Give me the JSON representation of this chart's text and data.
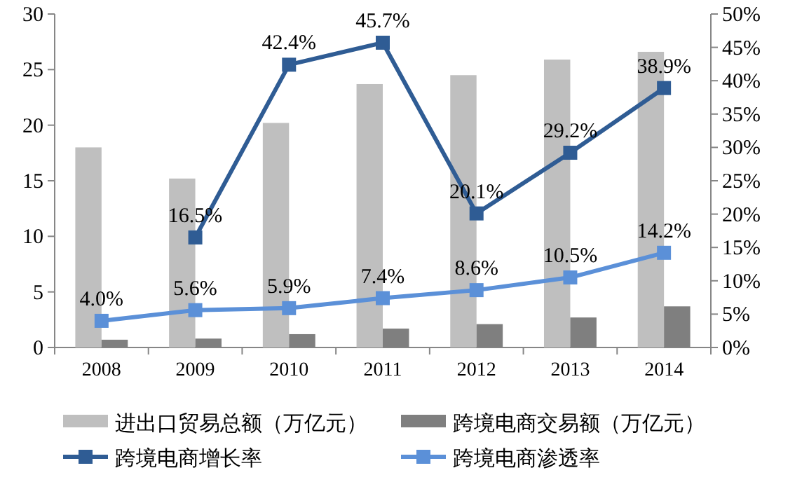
{
  "chart_data": {
    "type": "bar",
    "categories": [
      "2008",
      "2009",
      "2010",
      "2011",
      "2012",
      "2013",
      "2014"
    ],
    "series": [
      {
        "name": "进出口贸易总额（万亿元）",
        "color": "#bfbfbf",
        "values": [
          18.0,
          15.2,
          20.2,
          23.7,
          24.5,
          25.9,
          26.6
        ]
      },
      {
        "name": "跨境电商交易额（万亿元）",
        "color": "#7f7f7f",
        "values": [
          0.7,
          0.8,
          1.2,
          1.7,
          2.1,
          2.7,
          3.7
        ]
      },
      {
        "name": "跨境电商增长率",
        "type": "line",
        "axis": "y2",
        "color": "#2f5c94",
        "marker": "square",
        "values": [
          null,
          16.5,
          42.4,
          45.7,
          20.1,
          29.2,
          38.9
        ],
        "value_labels": [
          null,
          "16.5%",
          "42.4%",
          "45.7%",
          "20.1%",
          "29.2%",
          "38.9%"
        ]
      },
      {
        "name": "跨境电商渗透率",
        "type": "line",
        "axis": "y2",
        "color": "#5b90d8",
        "marker": "square",
        "values": [
          4.0,
          5.6,
          5.9,
          7.4,
          8.6,
          10.5,
          14.2
        ],
        "value_labels": [
          "4.0%",
          "5.6%",
          "5.9%",
          "7.4%",
          "8.6%",
          "10.5%",
          "14.2%"
        ]
      }
    ],
    "ylim": [
      0,
      30
    ],
    "yticks": [
      0,
      5,
      10,
      15,
      20,
      25,
      30
    ],
    "y2lim": [
      0,
      50
    ],
    "y2ticks": [
      {
        "value": 0,
        "label": "0%"
      },
      {
        "value": 5,
        "label": "5%"
      },
      {
        "value": 10,
        "label": "10%"
      },
      {
        "value": 15,
        "label": "15%"
      },
      {
        "value": 20,
        "label": "20%"
      },
      {
        "value": 25,
        "label": "25%"
      },
      {
        "value": 30,
        "label": "30%"
      },
      {
        "value": 35,
        "label": "35%"
      },
      {
        "value": 40,
        "label": "40%"
      },
      {
        "value": 45,
        "label": "45%"
      },
      {
        "value": 50,
        "label": "50%"
      }
    ],
    "legend": "bottom",
    "grid": false
  }
}
